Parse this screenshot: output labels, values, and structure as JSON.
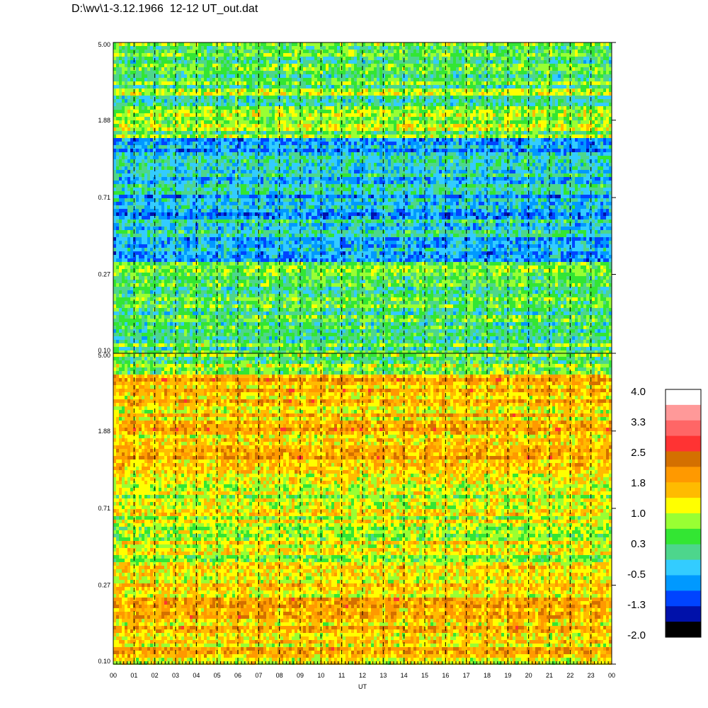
{
  "title": "D:\\wv\\1-3.12.1966  12-12 UT_out.dat",
  "chart_data": {
    "type": "heatmap",
    "panels": [
      {
        "name": "",
        "y_ticks": [
          "5.00",
          "1.88",
          "0.71",
          "0.27",
          "0.10"
        ],
        "y_values": [
          5.0,
          1.88,
          0.71,
          0.27,
          0.1
        ],
        "y_scale": "log",
        "dominant_range": [
          -0.5,
          1.0
        ]
      },
      {
        "name": "",
        "y_ticks": [
          "5.00",
          "1.88",
          "0.71",
          "0.27",
          "0.10"
        ],
        "y_values": [
          5.0,
          1.88,
          0.71,
          0.27,
          0.1
        ],
        "y_scale": "log",
        "dominant_range": [
          0.6,
          2.2
        ]
      }
    ],
    "x_ticks": [
      "00",
      "01",
      "02",
      "03",
      "04",
      "05",
      "06",
      "07",
      "08",
      "09",
      "10",
      "11",
      "12",
      "13",
      "14",
      "15",
      "16",
      "17",
      "18",
      "19",
      "20",
      "21",
      "22",
      "23",
      "00"
    ],
    "xlabel": "UT",
    "xlim": [
      0,
      24
    ],
    "vertical_dashed_gridlines": true,
    "colorbar": {
      "ticks": [
        "4.0",
        "3.3",
        "2.5",
        "1.8",
        "1.0",
        "0.3",
        "-0.5",
        "-1.3",
        "-2.0"
      ],
      "range": [
        -2.0,
        4.0
      ],
      "colors": [
        "#ffffff",
        "#ff9999",
        "#ff6666",
        "#ff3333",
        "#d47000",
        "#ff9900",
        "#ffbb00",
        "#ffff00",
        "#99ff33",
        "#33e633",
        "#4dd68c",
        "#33ccff",
        "#0099ff",
        "#0044ff",
        "#0011aa",
        "#000000"
      ]
    }
  }
}
